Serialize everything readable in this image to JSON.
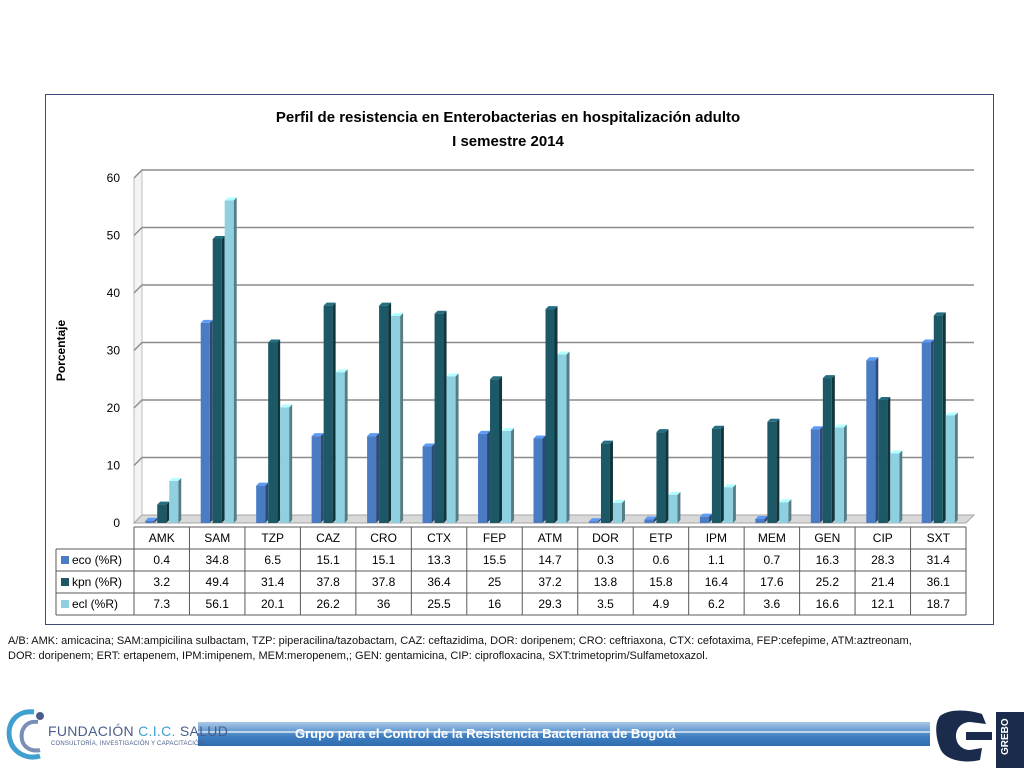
{
  "chart_data": {
    "type": "bar",
    "title": "Perfil de resistencia en Enterobacterias en hospitalización adulto",
    "subtitle": "I semestre 2014",
    "xlabel": "",
    "ylabel": "Porcentaje",
    "ylim": [
      0,
      60
    ],
    "yticks": [
      "0",
      "10",
      "20",
      "30",
      "40",
      "50",
      "60"
    ],
    "grid": true,
    "categories": [
      "AMK",
      "SAM",
      "TZP",
      "CAZ",
      "CRO",
      "CTX",
      "FEP",
      "ATM",
      "DOR",
      "ETP",
      "IPM",
      "MEM",
      "GEN",
      "CIP",
      "SXT"
    ],
    "series": [
      {
        "name": "eco (%R)",
        "color": "#4a7cc4",
        "values": [
          0.4,
          34.8,
          6.5,
          15.1,
          15.1,
          13.3,
          15.5,
          14.7,
          0.3,
          0.6,
          1.1,
          0.7,
          16.3,
          28.3,
          31.4
        ],
        "labels": [
          "0.4",
          "34.8",
          "6.5",
          "15.1",
          "15.1",
          "13.3",
          "15.5",
          "14.7",
          "0.3",
          "0.6",
          "1.1",
          "0.7",
          "16.3",
          "28.3",
          "31.4"
        ]
      },
      {
        "name": "kpn (%R)",
        "color": "#1c5866",
        "values": [
          3.2,
          49.4,
          31.4,
          37.8,
          37.8,
          36.4,
          25,
          37.2,
          13.8,
          15.8,
          16.4,
          17.6,
          25.2,
          21.4,
          36.1
        ],
        "labels": [
          "3.2",
          "49.4",
          "31.4",
          "37.8",
          "37.8",
          "36.4",
          "25",
          "37.2",
          "13.8",
          "15.8",
          "16.4",
          "17.6",
          "25.2",
          "21.4",
          "36.1"
        ]
      },
      {
        "name": "ecl (%R)",
        "color": "#8fd0e0",
        "values": [
          7.3,
          56.1,
          20.1,
          26.2,
          36,
          25.5,
          16,
          29.3,
          3.5,
          4.9,
          6.2,
          3.6,
          16.6,
          12.1,
          18.7
        ],
        "labels": [
          "7.3",
          "56.1",
          "20.1",
          "26.2",
          "36",
          "25.5",
          "16",
          "29.3",
          "3.5",
          "4.9",
          "6.2",
          "3.6",
          "16.6",
          "12.1",
          "18.7"
        ]
      }
    ]
  },
  "footnote": {
    "line1": "A/B: AMK: amicacina; SAM:ampicilina sulbactam, TZP: piperacilina/tazobactam, CAZ: ceftazidima, DOR: doripenem; CRO: ceftriaxona, CTX: cefotaxima, FEP:cefepime,   ATM:aztreonam,",
    "line2": "DOR: doripenem; ERT: ertapenem, IPM:imipenem, MEM:meropenem,; GEN: gentamicina, CIP: ciprofloxacina, SXT:trimetoprim/Sulfametoxazol."
  },
  "footer": {
    "banner_text": "Grupo para el Control de la Resistencia Bacteriana de Bogotá",
    "logo_left_name": "FUNDACIÓN",
    "logo_left_cic": "C.I.C.",
    "logo_left_salud": "SALUD",
    "logo_left_sub": "CONSULTORÍA, INVESTIGACIÓN Y CAPACITACIÓN",
    "logo_right_text": "GREBO"
  }
}
